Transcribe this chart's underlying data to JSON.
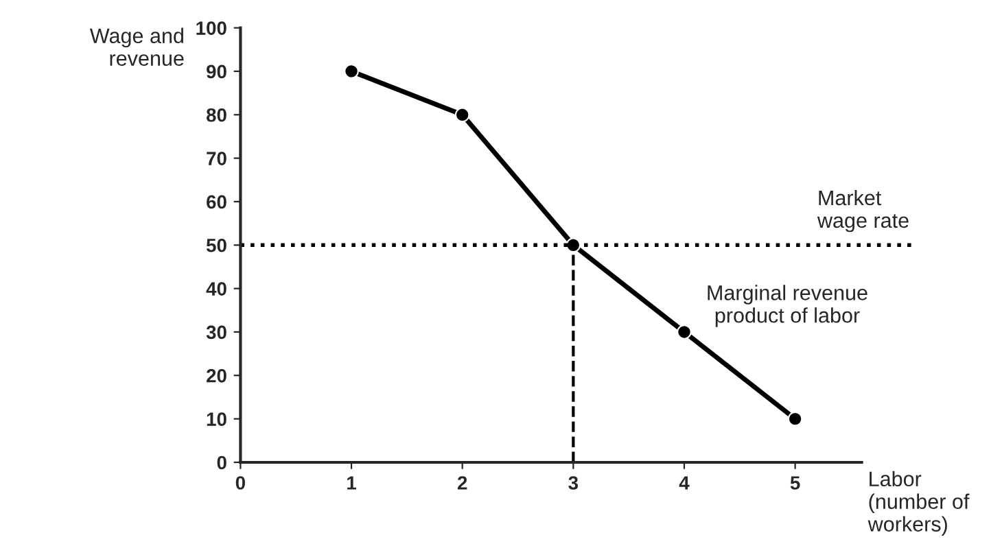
{
  "chart_data": {
    "type": "line",
    "xlabel": "Labor\n(number of\nworkers)",
    "ylabel": "Wage and\nrevenue",
    "x": [
      1,
      2,
      3,
      4,
      5
    ],
    "series": [
      {
        "color": "#000000",
        "values": [
          90,
          80,
          50,
          30,
          10
        ]
      }
    ],
    "marker": "circle",
    "line_style": "solid",
    "xlim": [
      0,
      5.6
    ],
    "xticks": [
      0,
      1,
      2,
      3,
      4,
      5
    ],
    "ylim": [
      0,
      100
    ],
    "yticks": [
      0,
      10,
      20,
      30,
      40,
      50,
      60,
      70,
      80,
      90,
      100
    ],
    "ref_lines": [
      {
        "axis": "y",
        "value": 50,
        "label": "Market\nwage rate",
        "line_style": "dotted",
        "color": "#000000"
      },
      {
        "axis": "x",
        "value": 3,
        "line_style": "dashed",
        "color": "#000000"
      }
    ],
    "annotations": [
      "Marginal revenue\nproduct of labor"
    ],
    "grid": false
  }
}
